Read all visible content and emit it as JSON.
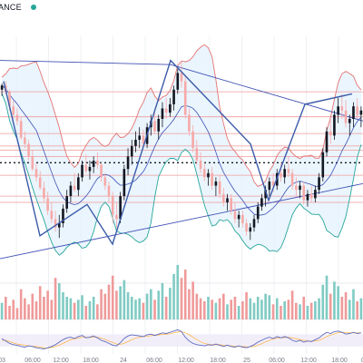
{
  "header": {
    "exchange": "ANCE",
    "status_color": "#26a69a"
  },
  "colors": {
    "up": "#131722",
    "down": "#f7a9a7",
    "vol_up": "#80cbc4",
    "vol_down": "#ef9a9a",
    "bb_band": "#e57373",
    "bb_basis": "#3f51b5",
    "bb_fill": "#e3f2fd",
    "pattern": "#3b5ba9",
    "trendline": "#3f51b5",
    "hline": "#ef9a9a",
    "dotted": "#131722",
    "teal": "#26a69a",
    "osc_main": "#5c6bc0",
    "osc_signal": "#ffb74d",
    "osc_band": "#ede7f6",
    "axis": "#787b86",
    "grid": "#eef0f3"
  },
  "chart_data": {
    "type": "candlestick",
    "title": "",
    "price_range": [
      0,
      100
    ],
    "x_tick_labels": [
      "03",
      "06:00",
      "12:00",
      "18:00",
      "24",
      "06:00",
      "12:00",
      "18:00",
      "25",
      "06:00",
      "12:00",
      "18:00",
      "0"
    ],
    "horizontal_levels": [
      83,
      71,
      63,
      57,
      55,
      52,
      43,
      33,
      30
    ],
    "dotted_level": 49,
    "pattern_points": [
      [
        1,
        88
      ],
      [
        11,
        14
      ],
      [
        24,
        29
      ],
      [
        31,
        10
      ],
      [
        47,
        98
      ],
      [
        69,
        58
      ],
      [
        74,
        31
      ],
      [
        84,
        77
      ],
      [
        97,
        82
      ]
    ],
    "trendlines": [
      {
        "from": [
          0,
          98
        ],
        "to": [
          47,
          96
        ]
      },
      {
        "from": [
          47,
          96
        ],
        "to": [
          100,
          69
        ]
      },
      {
        "from": [
          0,
          3
        ],
        "to": [
          100,
          39
        ]
      }
    ],
    "candles": [
      [
        84,
        87,
        81,
        86
      ],
      [
        86,
        88,
        82,
        83
      ],
      [
        83,
        84,
        74,
        76
      ],
      [
        76,
        79,
        70,
        72
      ],
      [
        72,
        75,
        67,
        69
      ],
      [
        69,
        71,
        60,
        61
      ],
      [
        61,
        64,
        56,
        58
      ],
      [
        58,
        60,
        50,
        52
      ],
      [
        52,
        55,
        45,
        46
      ],
      [
        46,
        49,
        40,
        42
      ],
      [
        42,
        45,
        36,
        37
      ],
      [
        37,
        40,
        30,
        32
      ],
      [
        32,
        35,
        24,
        26
      ],
      [
        26,
        30,
        20,
        22
      ],
      [
        22,
        26,
        16,
        18
      ],
      [
        18,
        24,
        13,
        20
      ],
      [
        20,
        29,
        18,
        27
      ],
      [
        27,
        36,
        25,
        33
      ],
      [
        33,
        40,
        30,
        38
      ],
      [
        38,
        44,
        35,
        36
      ],
      [
        36,
        44,
        33,
        42
      ],
      [
        42,
        50,
        40,
        48
      ],
      [
        48,
        53,
        44,
        45
      ],
      [
        45,
        50,
        41,
        47
      ],
      [
        47,
        52,
        44,
        50
      ],
      [
        50,
        54,
        46,
        48
      ],
      [
        48,
        49,
        40,
        42
      ],
      [
        42,
        44,
        36,
        38
      ],
      [
        38,
        40,
        30,
        33
      ],
      [
        33,
        35,
        20,
        24
      ],
      [
        24,
        30,
        18,
        22
      ],
      [
        22,
        35,
        20,
        33
      ],
      [
        33,
        48,
        31,
        46
      ],
      [
        46,
        56,
        43,
        52
      ],
      [
        52,
        60,
        48,
        57
      ],
      [
        57,
        64,
        54,
        60
      ],
      [
        60,
        66,
        56,
        62
      ],
      [
        62,
        65,
        56,
        58
      ],
      [
        58,
        68,
        56,
        66
      ],
      [
        66,
        72,
        62,
        69
      ],
      [
        69,
        73,
        63,
        64
      ],
      [
        64,
        72,
        60,
        70
      ],
      [
        70,
        78,
        66,
        75
      ],
      [
        75,
        80,
        70,
        73
      ],
      [
        73,
        80,
        71,
        77
      ],
      [
        77,
        86,
        74,
        84
      ],
      [
        84,
        94,
        82,
        92
      ],
      [
        92,
        98,
        85,
        88
      ],
      [
        88,
        91,
        70,
        72
      ],
      [
        72,
        75,
        62,
        64
      ],
      [
        64,
        67,
        54,
        56
      ],
      [
        56,
        60,
        48,
        50
      ],
      [
        50,
        54,
        44,
        46
      ],
      [
        46,
        49,
        40,
        42
      ],
      [
        42,
        46,
        38,
        44
      ],
      [
        44,
        47,
        36,
        38
      ],
      [
        38,
        42,
        33,
        40
      ],
      [
        40,
        43,
        32,
        34
      ],
      [
        34,
        37,
        28,
        30
      ],
      [
        30,
        34,
        26,
        32
      ],
      [
        32,
        34,
        24,
        26
      ],
      [
        26,
        30,
        20,
        22
      ],
      [
        22,
        26,
        18,
        24
      ],
      [
        24,
        26,
        18,
        20
      ],
      [
        20,
        22,
        14,
        16
      ],
      [
        16,
        20,
        12,
        18
      ],
      [
        18,
        24,
        16,
        22
      ],
      [
        22,
        30,
        20,
        28
      ],
      [
        28,
        34,
        26,
        32
      ],
      [
        32,
        38,
        28,
        36
      ],
      [
        36,
        42,
        33,
        40
      ],
      [
        40,
        44,
        35,
        38
      ],
      [
        38,
        46,
        36,
        44
      ],
      [
        44,
        49,
        40,
        42
      ],
      [
        42,
        48,
        39,
        46
      ],
      [
        46,
        52,
        42,
        44
      ],
      [
        44,
        46,
        36,
        38
      ],
      [
        38,
        42,
        33,
        36
      ],
      [
        36,
        40,
        32,
        38
      ],
      [
        38,
        40,
        29,
        31
      ],
      [
        31,
        36,
        28,
        34
      ],
      [
        34,
        38,
        30,
        32
      ],
      [
        32,
        38,
        30,
        36
      ],
      [
        36,
        44,
        34,
        42
      ],
      [
        42,
        56,
        40,
        54
      ],
      [
        54,
        66,
        52,
        64
      ],
      [
        64,
        70,
        58,
        62
      ],
      [
        62,
        74,
        60,
        72
      ],
      [
        72,
        80,
        68,
        76
      ],
      [
        76,
        82,
        70,
        74
      ],
      [
        74,
        79,
        66,
        68
      ],
      [
        68,
        72,
        62,
        70
      ],
      [
        70,
        78,
        66,
        76
      ],
      [
        76,
        80,
        70,
        72
      ],
      [
        72,
        76,
        66,
        74
      ]
    ],
    "volume": [
      [
        22,
        0
      ],
      [
        30,
        1
      ],
      [
        18,
        1
      ],
      [
        26,
        1
      ],
      [
        15,
        1
      ],
      [
        40,
        1
      ],
      [
        28,
        1
      ],
      [
        20,
        1
      ],
      [
        34,
        1
      ],
      [
        24,
        1
      ],
      [
        44,
        1
      ],
      [
        30,
        1
      ],
      [
        38,
        1
      ],
      [
        26,
        1
      ],
      [
        55,
        1
      ],
      [
        48,
        0
      ],
      [
        36,
        0
      ],
      [
        30,
        0
      ],
      [
        28,
        0
      ],
      [
        22,
        1
      ],
      [
        26,
        0
      ],
      [
        32,
        0
      ],
      [
        18,
        1
      ],
      [
        24,
        0
      ],
      [
        30,
        0
      ],
      [
        20,
        1
      ],
      [
        40,
        1
      ],
      [
        34,
        1
      ],
      [
        46,
        1
      ],
      [
        58,
        1
      ],
      [
        38,
        1
      ],
      [
        44,
        0
      ],
      [
        52,
        0
      ],
      [
        36,
        0
      ],
      [
        30,
        0
      ],
      [
        26,
        0
      ],
      [
        28,
        0
      ],
      [
        22,
        1
      ],
      [
        34,
        0
      ],
      [
        40,
        0
      ],
      [
        26,
        1
      ],
      [
        38,
        0
      ],
      [
        48,
        0
      ],
      [
        30,
        1
      ],
      [
        42,
        0
      ],
      [
        60,
        0
      ],
      [
        72,
        0
      ],
      [
        55,
        1
      ],
      [
        66,
        1
      ],
      [
        40,
        1
      ],
      [
        50,
        1
      ],
      [
        34,
        1
      ],
      [
        28,
        1
      ],
      [
        24,
        1
      ],
      [
        30,
        0
      ],
      [
        26,
        1
      ],
      [
        22,
        0
      ],
      [
        28,
        1
      ],
      [
        34,
        1
      ],
      [
        20,
        0
      ],
      [
        26,
        1
      ],
      [
        30,
        1
      ],
      [
        18,
        0
      ],
      [
        24,
        1
      ],
      [
        36,
        1
      ],
      [
        28,
        0
      ],
      [
        22,
        0
      ],
      [
        30,
        0
      ],
      [
        26,
        0
      ],
      [
        34,
        0
      ],
      [
        32,
        0
      ],
      [
        20,
        1
      ],
      [
        28,
        0
      ],
      [
        18,
        1
      ],
      [
        24,
        0
      ],
      [
        26,
        1
      ],
      [
        38,
        1
      ],
      [
        22,
        1
      ],
      [
        20,
        0
      ],
      [
        30,
        1
      ],
      [
        18,
        0
      ],
      [
        22,
        1
      ],
      [
        24,
        0
      ],
      [
        28,
        0
      ],
      [
        46,
        0
      ],
      [
        58,
        0
      ],
      [
        34,
        1
      ],
      [
        50,
        0
      ],
      [
        44,
        0
      ],
      [
        30,
        1
      ],
      [
        36,
        1
      ],
      [
        26,
        0
      ],
      [
        40,
        0
      ],
      [
        24,
        1
      ],
      [
        28,
        0
      ]
    ],
    "oscillator": {
      "main": [
        55,
        48,
        40,
        36,
        34,
        30,
        28,
        32,
        30,
        26,
        24,
        22,
        26,
        30,
        36,
        44,
        52,
        58,
        60,
        56,
        62,
        66,
        58,
        60,
        64,
        58,
        50,
        46,
        40,
        34,
        32,
        42,
        56,
        64,
        68,
        66,
        64,
        62,
        68,
        70,
        66,
        70,
        74,
        72,
        76,
        80,
        84,
        78,
        60,
        48,
        40,
        36,
        34,
        32,
        36,
        34,
        38,
        34,
        30,
        34,
        30,
        28,
        32,
        28,
        26,
        30,
        36,
        44,
        50,
        56,
        60,
        56,
        62,
        58,
        62,
        58,
        50,
        46,
        50,
        44,
        48,
        46,
        52,
        58,
        68,
        76,
        72,
        78,
        80,
        76,
        70,
        72,
        76,
        72,
        74
      ],
      "signal": [
        50,
        50,
        46,
        42,
        38,
        36,
        34,
        32,
        31,
        30,
        28,
        26,
        25,
        27,
        30,
        34,
        40,
        46,
        52,
        55,
        57,
        60,
        60,
        59,
        60,
        60,
        57,
        53,
        48,
        43,
        38,
        37,
        40,
        46,
        52,
        57,
        60,
        62,
        63,
        65,
        66,
        67,
        69,
        70,
        71,
        74,
        77,
        78,
        74,
        68,
        60,
        52,
        45,
        40,
        37,
        36,
        36,
        36,
        34,
        33,
        32,
        31,
        31,
        30,
        29,
        29,
        30,
        34,
        39,
        45,
        50,
        54,
        57,
        58,
        59,
        60,
        58,
        55,
        52,
        50,
        48,
        47,
        48,
        50,
        55,
        62,
        67,
        71,
        75,
        76,
        75,
        74,
        74,
        74,
        74
      ],
      "band": [
        30,
        70
      ]
    }
  }
}
